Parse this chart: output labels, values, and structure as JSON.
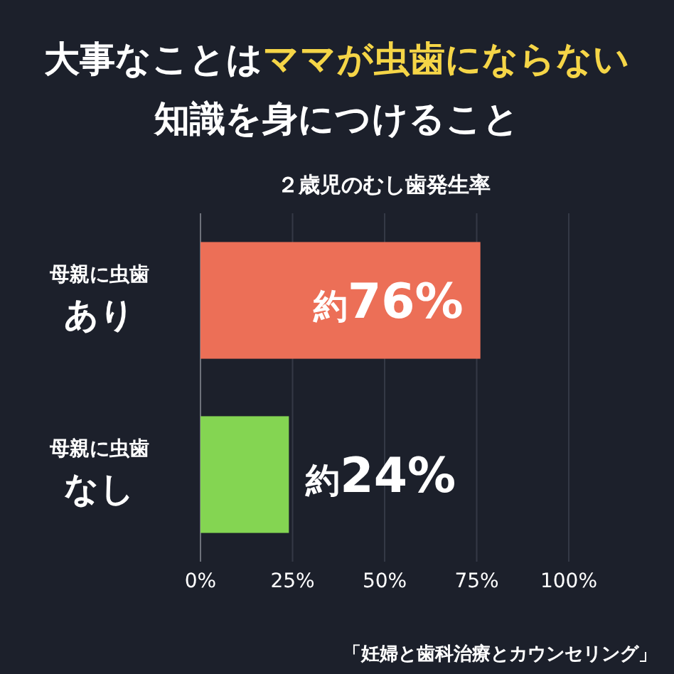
{
  "chart_data": {
    "type": "bar",
    "orientation": "horizontal",
    "title": "大事なことは**ママが虫歯にならない**知識を身につけること",
    "subtitle": "２歳児のむし歯発生率",
    "categories": [
      "母親に虫歯**あり**",
      "母親に虫歯**なし**"
    ],
    "values": [
      76,
      24
    ],
    "colors": [
      "#ec6f57",
      "#84d552"
    ],
    "value_labels": [
      "約76%",
      "約24%"
    ],
    "xlim": [
      0,
      100
    ],
    "xticks": [
      {
        "value": 0,
        "label": "0%"
      },
      {
        "value": 25,
        "label": "25%"
      },
      {
        "value": 50,
        "label": "50%"
      },
      {
        "value": 75,
        "label": "75%"
      },
      {
        "value": 100,
        "label": "100%"
      }
    ],
    "grid": "x",
    "annotations": [
      "「妊婦と歯科治療とカウンセリング」"
    ]
  }
}
